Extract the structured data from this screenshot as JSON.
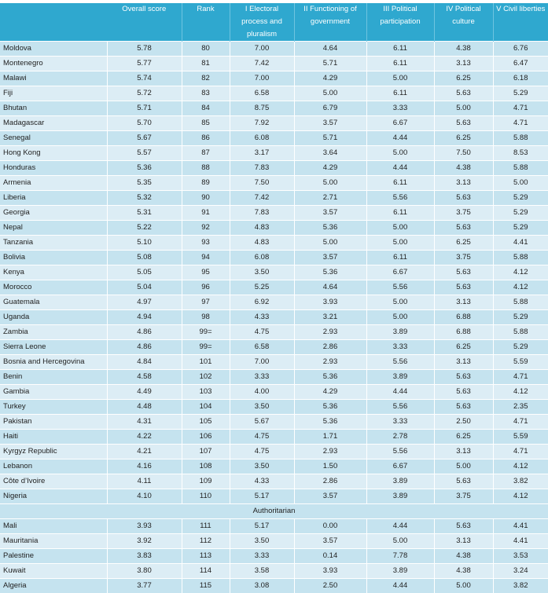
{
  "table": {
    "columns": [
      "",
      "Overall score",
      "Rank",
      "I Electoral process and pluralism",
      "II Functioning of government",
      "III Political participation",
      "IV Political culture",
      "V Civil liberties"
    ],
    "rows_a": [
      [
        "Moldova",
        "5.78",
        "80",
        "7.00",
        "4.64",
        "6.11",
        "4.38",
        "6.76"
      ],
      [
        "Montenegro",
        "5.77",
        "81",
        "7.42",
        "5.71",
        "6.11",
        "3.13",
        "6.47"
      ],
      [
        "Malawi",
        "5.74",
        "82",
        "7.00",
        "4.29",
        "5.00",
        "6.25",
        "6.18"
      ],
      [
        "Fiji",
        "5.72",
        "83",
        "6.58",
        "5.00",
        "6.11",
        "5.63",
        "5.29"
      ],
      [
        "Bhutan",
        "5.71",
        "84",
        "8.75",
        "6.79",
        "3.33",
        "5.00",
        "4.71"
      ],
      [
        "Madagascar",
        "5.70",
        "85",
        "7.92",
        "3.57",
        "6.67",
        "5.63",
        "4.71"
      ],
      [
        "Senegal",
        "5.67",
        "86",
        "6.08",
        "5.71",
        "4.44",
        "6.25",
        "5.88"
      ],
      [
        "Hong Kong",
        "5.57",
        "87",
        "3.17",
        "3.64",
        "5.00",
        "7.50",
        "8.53"
      ],
      [
        "Honduras",
        "5.36",
        "88",
        "7.83",
        "4.29",
        "4.44",
        "4.38",
        "5.88"
      ],
      [
        "Armenia",
        "5.35",
        "89",
        "7.50",
        "5.00",
        "6.11",
        "3.13",
        "5.00"
      ],
      [
        "Liberia",
        "5.32",
        "90",
        "7.42",
        "2.71",
        "5.56",
        "5.63",
        "5.29"
      ],
      [
        "Georgia",
        "5.31",
        "91",
        "7.83",
        "3.57",
        "6.11",
        "3.75",
        "5.29"
      ],
      [
        "Nepal",
        "5.22",
        "92",
        "4.83",
        "5.36",
        "5.00",
        "5.63",
        "5.29"
      ],
      [
        "Tanzania",
        "5.10",
        "93",
        "4.83",
        "5.00",
        "5.00",
        "6.25",
        "4.41"
      ],
      [
        "Bolivia",
        "5.08",
        "94",
        "6.08",
        "3.57",
        "6.11",
        "3.75",
        "5.88"
      ],
      [
        "Kenya",
        "5.05",
        "95",
        "3.50",
        "5.36",
        "6.67",
        "5.63",
        "4.12"
      ],
      [
        "Morocco",
        "5.04",
        "96",
        "5.25",
        "4.64",
        "5.56",
        "5.63",
        "4.12"
      ],
      [
        "Guatemala",
        "4.97",
        "97",
        "6.92",
        "3.93",
        "5.00",
        "3.13",
        "5.88"
      ],
      [
        "Uganda",
        "4.94",
        "98",
        "4.33",
        "3.21",
        "5.00",
        "6.88",
        "5.29"
      ],
      [
        "Zambia",
        "4.86",
        "99=",
        "4.75",
        "2.93",
        "3.89",
        "6.88",
        "5.88"
      ],
      [
        "Sierra Leone",
        "4.86",
        "99=",
        "6.58",
        "2.86",
        "3.33",
        "6.25",
        "5.29"
      ],
      [
        "Bosnia and Hercegovina",
        "4.84",
        "101",
        "7.00",
        "2.93",
        "5.56",
        "3.13",
        "5.59"
      ],
      [
        "Benin",
        "4.58",
        "102",
        "3.33",
        "5.36",
        "3.89",
        "5.63",
        "4.71"
      ],
      [
        "Gambia",
        "4.49",
        "103",
        "4.00",
        "4.29",
        "4.44",
        "5.63",
        "4.12"
      ],
      [
        "Turkey",
        "4.48",
        "104",
        "3.50",
        "5.36",
        "5.56",
        "5.63",
        "2.35"
      ],
      [
        "Pakistan",
        "4.31",
        "105",
        "5.67",
        "5.36",
        "3.33",
        "2.50",
        "4.71"
      ],
      [
        "Haiti",
        "4.22",
        "106",
        "4.75",
        "1.71",
        "2.78",
        "6.25",
        "5.59"
      ],
      [
        "Kyrgyz Republic",
        "4.21",
        "107",
        "4.75",
        "2.93",
        "5.56",
        "3.13",
        "4.71"
      ],
      [
        "Lebanon",
        "4.16",
        "108",
        "3.50",
        "1.50",
        "6.67",
        "5.00",
        "4.12"
      ],
      [
        "Côte d’Ivoire",
        "4.11",
        "109",
        "4.33",
        "2.86",
        "3.89",
        "5.63",
        "3.82"
      ],
      [
        "Nigeria",
        "4.10",
        "110",
        "5.17",
        "3.57",
        "3.89",
        "3.75",
        "4.12"
      ]
    ],
    "section_label": "Authoritarian",
    "rows_b": [
      [
        "Mali",
        "3.93",
        "111",
        "5.17",
        "0.00",
        "4.44",
        "5.63",
        "4.41"
      ],
      [
        "Mauritania",
        "3.92",
        "112",
        "3.50",
        "3.57",
        "5.00",
        "3.13",
        "4.41"
      ],
      [
        "Palestine",
        "3.83",
        "113",
        "3.33",
        "0.14",
        "7.78",
        "4.38",
        "3.53"
      ],
      [
        "Kuwait",
        "3.80",
        "114",
        "3.58",
        "3.93",
        "3.89",
        "4.38",
        "3.24"
      ],
      [
        "Algeria",
        "3.77",
        "115",
        "3.08",
        "2.50",
        "4.44",
        "5.00",
        "3.82"
      ]
    ]
  }
}
